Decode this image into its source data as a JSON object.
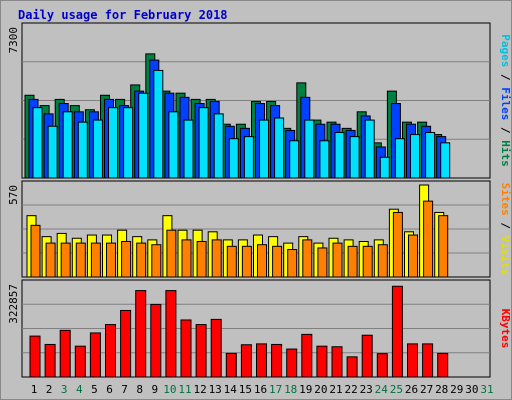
{
  "chart_data": {
    "type": "bar",
    "title": "Daily usage for February 2018",
    "days": [
      "1",
      "2",
      "3",
      "4",
      "5",
      "6",
      "7",
      "8",
      "9",
      "10",
      "11",
      "12",
      "13",
      "14",
      "15",
      "16",
      "17",
      "18",
      "19",
      "20",
      "21",
      "22",
      "23",
      "24",
      "25",
      "26",
      "27",
      "28",
      "29",
      "30",
      "31"
    ],
    "weekend_days": [
      "3",
      "4",
      "10",
      "11",
      "17",
      "18",
      "24",
      "25",
      "31"
    ],
    "colors": {
      "hits": "#008040",
      "files": "#0040ff",
      "pages": "#00e0ff",
      "visits": "#ffff00",
      "sites": "#ff8000",
      "kbytes": "#ff0000",
      "weekday_label": "#000000",
      "weekend_label": "#007040",
      "title": "#0000cc"
    },
    "panels": [
      {
        "name": "requests",
        "max_label": "7300",
        "ymax": 7300,
        "label_parts": [
          {
            "text": "Pages",
            "color": "#00c0e0"
          },
          {
            "text": " / ",
            "color": "#000000"
          },
          {
            "text": "Files",
            "color": "#0040ff"
          },
          {
            "text": " / ",
            "color": "#000000"
          },
          {
            "text": "Hits",
            "color": "#008040"
          }
        ],
        "series": [
          {
            "name": "Hits",
            "color": "#008040",
            "values": [
              4000,
              3500,
              3800,
              3500,
              3300,
              4000,
              3800,
              4500,
              6000,
              4200,
              4100,
              3800,
              3800,
              2600,
              2600,
              3700,
              3700,
              2400,
              4600,
              2800,
              2700,
              2400,
              3200,
              1700,
              4200,
              2700,
              2700,
              2100,
              0,
              0,
              0
            ]
          },
          {
            "name": "Files",
            "color": "#0040ff",
            "values": [
              3800,
              3100,
              3600,
              3200,
              3200,
              3800,
              3500,
              4200,
              5700,
              4100,
              3900,
              3600,
              3700,
              2500,
              2400,
              3600,
              3500,
              2300,
              3900,
              2600,
              2600,
              2300,
              3000,
              1500,
              3600,
              2600,
              2500,
              2000,
              0,
              0,
              0
            ]
          },
          {
            "name": "Pages",
            "color": "#00e0ff",
            "values": [
              3400,
              2500,
              3200,
              2700,
              2800,
              3400,
              3400,
              4100,
              5200,
              3200,
              2800,
              3400,
              3100,
              1900,
              2000,
              2800,
              2900,
              1800,
              2800,
              1800,
              2200,
              2000,
              2800,
              1000,
              1900,
              2100,
              2200,
              1700,
              0,
              0,
              0
            ]
          }
        ]
      },
      {
        "name": "visitors",
        "max_label": "570",
        "ymax": 570,
        "label_parts": [
          {
            "text": "Sites",
            "color": "#ff8000"
          },
          {
            "text": " / ",
            "color": "#000000"
          },
          {
            "text": "Visits",
            "color": "#e0e000"
          }
        ],
        "series": [
          {
            "name": "Visits",
            "color": "#ffff00",
            "values": [
              380,
              250,
              270,
              240,
              260,
              260,
              290,
              250,
              230,
              380,
              290,
              290,
              280,
              230,
              230,
              260,
              250,
              210,
              250,
              210,
              240,
              230,
              220,
              230,
              420,
              280,
              570,
              400,
              0,
              0,
              0
            ]
          },
          {
            "name": "Sites",
            "color": "#ff8000",
            "values": [
              320,
              210,
              210,
              210,
              210,
              210,
              220,
              210,
              200,
              290,
              230,
              220,
              230,
              190,
              190,
              200,
              190,
              170,
              230,
              180,
              210,
              190,
              190,
              200,
              400,
              260,
              470,
              380,
              0,
              0,
              0
            ]
          }
        ]
      },
      {
        "name": "kbytes",
        "max_label": "322857",
        "ymax": 322857,
        "label_parts": [
          {
            "text": "KBytes",
            "color": "#ff0000"
          }
        ],
        "series": [
          {
            "name": "KBytes",
            "color": "#ff0000",
            "values": [
              142000,
              113000,
              162000,
              107000,
              153000,
              182000,
              231000,
              300000,
              252000,
              300000,
              198000,
              182000,
              200000,
              82000,
              112000,
              115000,
              113000,
              97000,
              148000,
              107000,
              105000,
              70000,
              145000,
              81000,
              315000,
              115000,
              115000,
              82000,
              0,
              0,
              0
            ]
          }
        ]
      }
    ]
  }
}
